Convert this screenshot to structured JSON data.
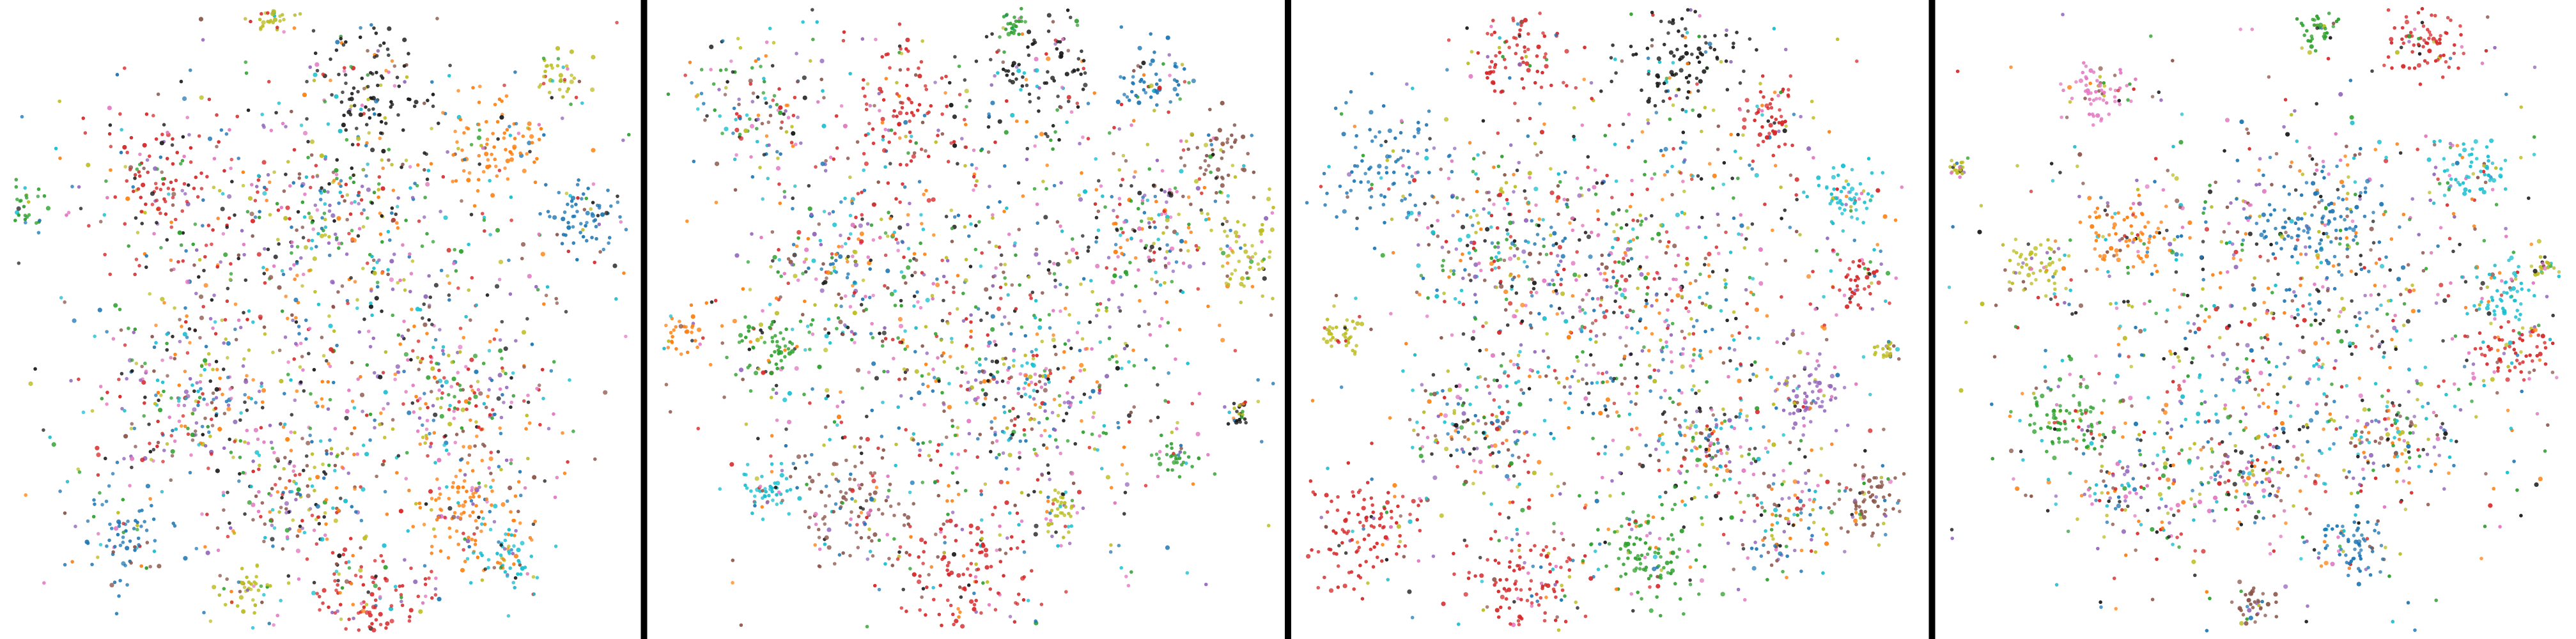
{
  "chart_data": [
    {
      "type": "scatter",
      "grid": false,
      "legend": "none",
      "approx_point_count": 4500,
      "description_of_shape": "dense circular cloud with peripheral small clusters",
      "cluster_seeds": [
        [
          0.5,
          0.5,
          0.22,
          900,
          "mixed"
        ],
        [
          0.25,
          0.28,
          0.06,
          120,
          "#d62728"
        ],
        [
          0.58,
          0.12,
          0.05,
          110,
          "#1b1b1b"
        ],
        [
          0.02,
          0.32,
          0.02,
          35,
          "#2ca02c"
        ],
        [
          0.78,
          0.22,
          0.04,
          90,
          "#ff7f0e"
        ],
        [
          0.92,
          0.34,
          0.03,
          70,
          "#1f77b4"
        ],
        [
          0.72,
          0.8,
          0.05,
          120,
          "#ff7f0e"
        ],
        [
          0.58,
          0.94,
          0.05,
          120,
          "#d62728"
        ],
        [
          0.38,
          0.93,
          0.02,
          40,
          "#bcbd22"
        ],
        [
          0.18,
          0.84,
          0.04,
          80,
          "#1f77b4"
        ],
        [
          0.8,
          0.88,
          0.03,
          60,
          "#17becf"
        ],
        [
          0.42,
          0.02,
          0.02,
          40,
          "#bcbd22"
        ],
        [
          0.88,
          0.12,
          0.02,
          40,
          "#bcbd22"
        ],
        [
          0.28,
          0.62,
          0.07,
          160,
          "mixed"
        ],
        [
          0.72,
          0.62,
          0.06,
          150,
          "mixed"
        ],
        [
          0.46,
          0.78,
          0.05,
          120,
          "mixed"
        ],
        [
          0.52,
          0.32,
          0.06,
          140,
          "mixed"
        ]
      ]
    },
    {
      "type": "scatter",
      "grid": false,
      "legend": "none",
      "approx_point_count": 4500,
      "description_of_shape": "broad central cloud with several satellite clusters at top and bottom",
      "cluster_seeds": [
        [
          0.52,
          0.5,
          0.2,
          900,
          "mixed"
        ],
        [
          0.15,
          0.16,
          0.06,
          130,
          "mixed"
        ],
        [
          0.4,
          0.16,
          0.05,
          100,
          "#d62728"
        ],
        [
          0.62,
          0.1,
          0.05,
          110,
          "#1b1b1b"
        ],
        [
          0.8,
          0.12,
          0.03,
          60,
          "#1f77b4"
        ],
        [
          0.9,
          0.24,
          0.03,
          60,
          "#8c564b"
        ],
        [
          0.96,
          0.4,
          0.04,
          80,
          "#bcbd22"
        ],
        [
          0.05,
          0.52,
          0.02,
          35,
          "#ff7f0e"
        ],
        [
          0.18,
          0.55,
          0.03,
          70,
          "#2ca02c"
        ],
        [
          0.18,
          0.77,
          0.02,
          50,
          "#17becf"
        ],
        [
          0.32,
          0.8,
          0.05,
          120,
          "#8c564b"
        ],
        [
          0.5,
          0.92,
          0.06,
          140,
          "#d62728"
        ],
        [
          0.65,
          0.8,
          0.02,
          45,
          "#bcbd22"
        ],
        [
          0.84,
          0.72,
          0.02,
          40,
          "#2ca02c"
        ],
        [
          0.94,
          0.65,
          0.01,
          25,
          "#1b1b1b"
        ],
        [
          0.58,
          0.03,
          0.01,
          25,
          "#2ca02c"
        ],
        [
          0.8,
          0.35,
          0.05,
          120,
          "mixed"
        ],
        [
          0.3,
          0.42,
          0.06,
          140,
          "mixed"
        ],
        [
          0.6,
          0.62,
          0.06,
          130,
          "mixed"
        ]
      ]
    },
    {
      "type": "scatter",
      "grid": false,
      "legend": "none",
      "approx_point_count": 4500,
      "description_of_shape": "dense core slightly right of center with scattered clusters all around",
      "cluster_seeds": [
        [
          0.52,
          0.48,
          0.18,
          950,
          "mixed"
        ],
        [
          0.35,
          0.08,
          0.04,
          90,
          "#d62728"
        ],
        [
          0.62,
          0.08,
          0.05,
          120,
          "#1b1b1b"
        ],
        [
          0.76,
          0.18,
          0.03,
          60,
          "#d62728"
        ],
        [
          0.14,
          0.26,
          0.05,
          110,
          "#1f77b4"
        ],
        [
          0.07,
          0.52,
          0.02,
          40,
          "#bcbd22"
        ],
        [
          0.88,
          0.3,
          0.03,
          70,
          "#17becf"
        ],
        [
          0.9,
          0.44,
          0.02,
          45,
          "#d62728"
        ],
        [
          0.95,
          0.55,
          0.01,
          25,
          "#bcbd22"
        ],
        [
          0.82,
          0.62,
          0.03,
          70,
          "#9467bd"
        ],
        [
          0.1,
          0.83,
          0.05,
          130,
          "#d62728"
        ],
        [
          0.36,
          0.92,
          0.05,
          130,
          "#d62728"
        ],
        [
          0.56,
          0.87,
          0.05,
          120,
          "#2ca02c"
        ],
        [
          0.78,
          0.82,
          0.05,
          120,
          "mixed"
        ],
        [
          0.92,
          0.78,
          0.03,
          80,
          "#8c564b"
        ],
        [
          0.28,
          0.68,
          0.05,
          120,
          "mixed"
        ],
        [
          0.66,
          0.7,
          0.04,
          100,
          "mixed"
        ],
        [
          0.3,
          0.36,
          0.06,
          130,
          "mixed"
        ]
      ]
    },
    {
      "type": "scatter",
      "grid": false,
      "legend": "none",
      "approx_point_count": 4500,
      "description_of_shape": "wide rectangular cloud with sparser upper-left and clusters along the edges",
      "cluster_seeds": [
        [
          0.52,
          0.52,
          0.23,
          950,
          "mixed"
        ],
        [
          0.6,
          0.35,
          0.06,
          140,
          "#1f77b4"
        ],
        [
          0.26,
          0.14,
          0.03,
          70,
          "#e377c2"
        ],
        [
          0.3,
          0.36,
          0.04,
          80,
          "#ff7f0e"
        ],
        [
          0.15,
          0.42,
          0.03,
          60,
          "#bcbd22"
        ],
        [
          0.02,
          0.26,
          0.01,
          25,
          "#bcbd22"
        ],
        [
          0.6,
          0.03,
          0.02,
          40,
          "#2ca02c"
        ],
        [
          0.78,
          0.06,
          0.03,
          80,
          "#d62728"
        ],
        [
          0.85,
          0.26,
          0.03,
          70,
          "#17becf"
        ],
        [
          0.9,
          0.46,
          0.03,
          60,
          "#17becf"
        ],
        [
          0.92,
          0.55,
          0.03,
          70,
          "#d62728"
        ],
        [
          0.97,
          0.42,
          0.01,
          25,
          "#bcbd22"
        ],
        [
          0.2,
          0.66,
          0.04,
          90,
          "#2ca02c"
        ],
        [
          0.5,
          0.75,
          0.05,
          110,
          "mixed"
        ],
        [
          0.72,
          0.68,
          0.05,
          110,
          "mixed"
        ],
        [
          0.5,
          0.95,
          0.02,
          35,
          "#8c564b"
        ],
        [
          0.3,
          0.78,
          0.05,
          100,
          "mixed"
        ],
        [
          0.66,
          0.86,
          0.03,
          70,
          "#1f77b4"
        ]
      ]
    }
  ],
  "palette": {
    "background": "#ffffff",
    "separator": "#000000",
    "point_colors": [
      "#1f77b4",
      "#ff7f0e",
      "#2ca02c",
      "#d62728",
      "#9467bd",
      "#8c564b",
      "#e377c2",
      "#1b1b1b",
      "#bcbd22",
      "#17becf"
    ]
  }
}
